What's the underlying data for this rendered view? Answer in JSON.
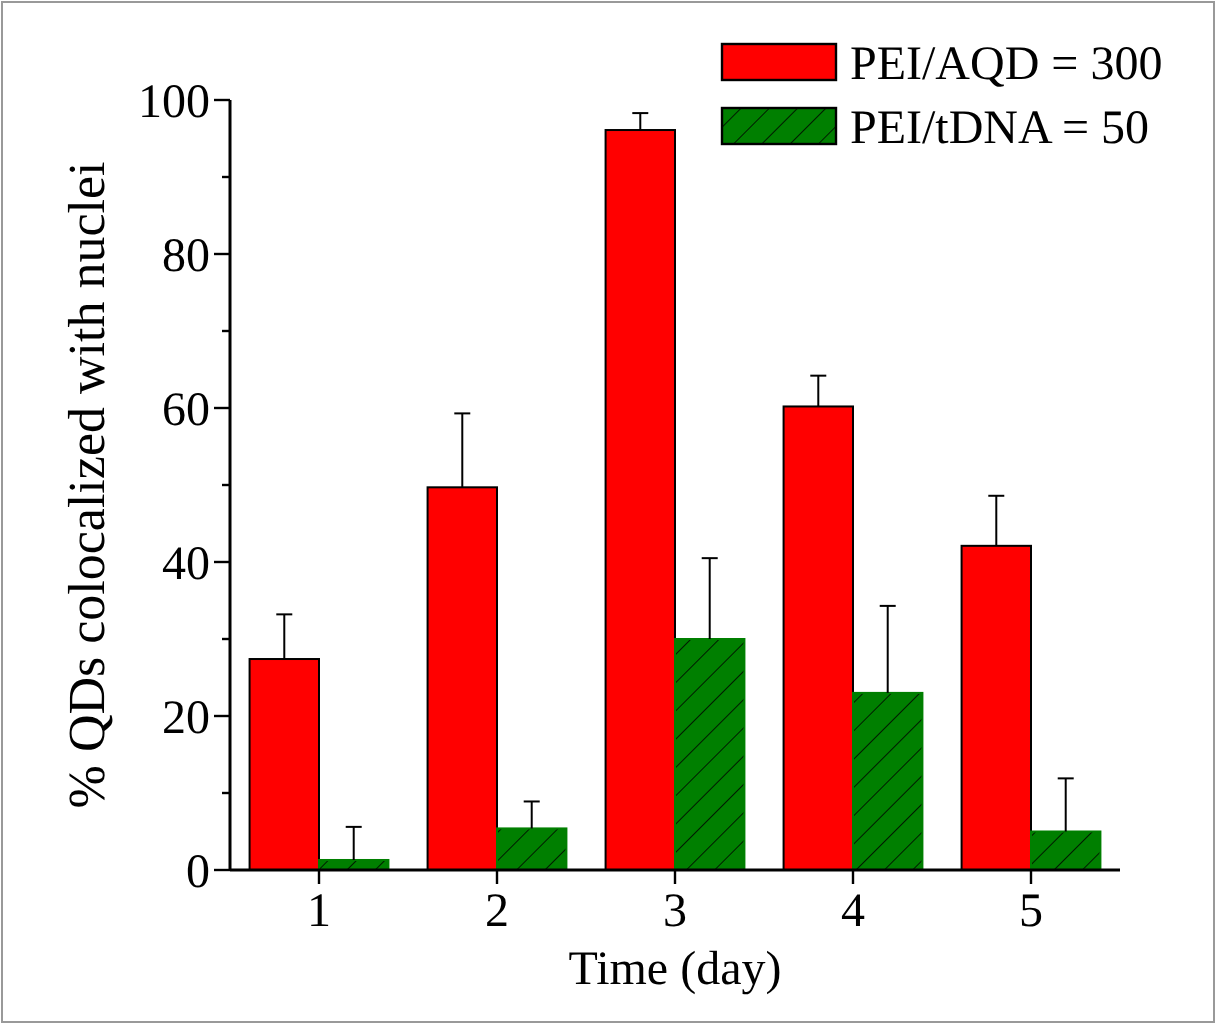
{
  "chart_data": {
    "type": "bar",
    "xlabel": "Time (day)",
    "ylabel": "% QDs colocalized with nuclei",
    "categories": [
      "1",
      "2",
      "3",
      "4",
      "5"
    ],
    "series": [
      {
        "name": "PEI/AQD = 300",
        "color": "#ff0000",
        "values": [
          27.4,
          49.7,
          96.1,
          60.2,
          42.1
        ],
        "errors": [
          [
            27.4,
            33.2
          ],
          [
            49.7,
            59.3
          ],
          [
            96.1,
            98.3
          ],
          [
            60.2,
            64.2
          ],
          [
            42.1,
            48.6
          ]
        ]
      },
      {
        "name": "PEI/tDNA = 50",
        "color": "#007f00",
        "values": [
          1.3,
          5.4,
          30.0,
          23.0,
          5.0
        ],
        "errors": [
          [
            1.3,
            5.6
          ],
          [
            5.4,
            8.9
          ],
          [
            30.0,
            40.5
          ],
          [
            23.0,
            34.3
          ],
          [
            5.0,
            11.9
          ]
        ]
      }
    ],
    "ylim": [
      0,
      100
    ],
    "yticks": [
      0,
      {
        "value": 10,
        "label": null
      },
      20,
      {
        "value": 30,
        "label": null
      },
      40,
      {
        "value": 50,
        "label": null
      },
      60,
      {
        "value": 70,
        "label": null
      },
      80,
      {
        "value": 90,
        "label": null
      },
      100
    ],
    "grid": false,
    "legend": "top right"
  }
}
